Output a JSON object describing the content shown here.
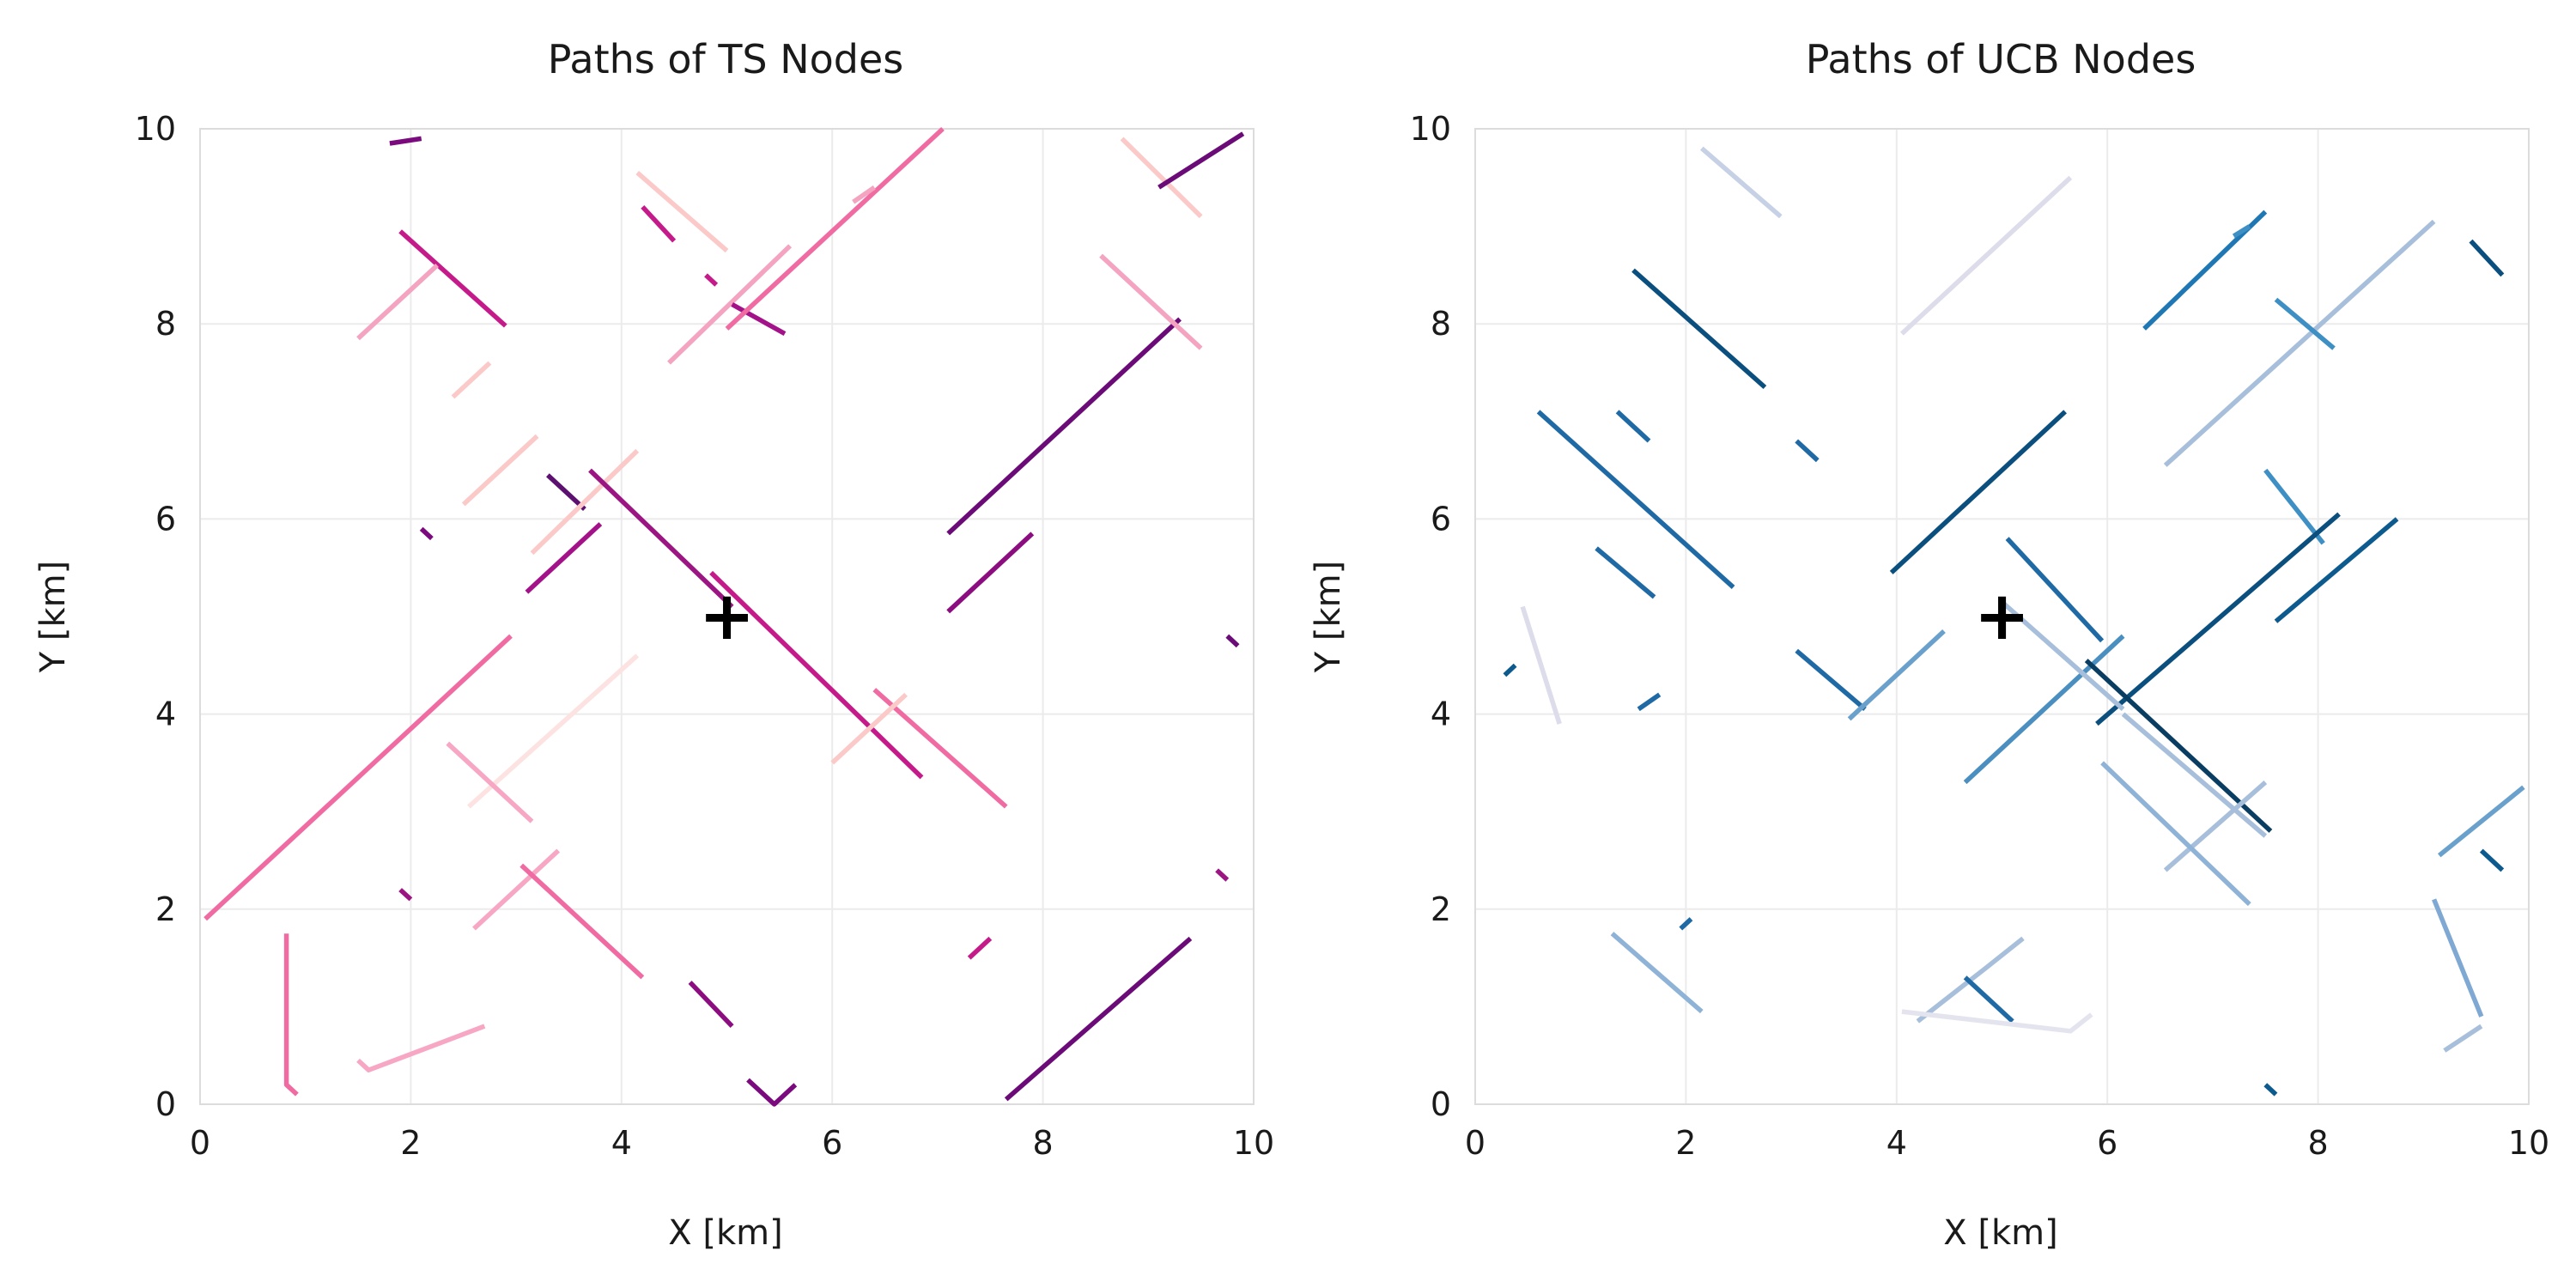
{
  "chart_data": [
    {
      "type": "line",
      "title": "Paths of TS Nodes",
      "xlabel": "X [km]",
      "ylabel": "Y [km]",
      "xlim": [
        0,
        10
      ],
      "ylim": [
        0,
        10
      ],
      "xticks": [
        "0",
        "2",
        "4",
        "6",
        "8",
        "10"
      ],
      "yticks": [
        "0",
        "2",
        "4",
        "6",
        "8",
        "10"
      ],
      "grid": true,
      "marker": {
        "label": "+",
        "x": 5,
        "y": 5
      },
      "series": [
        {
          "color": "#f06ba2",
          "x": [
            0.05,
            2.95
          ],
          "y": [
            1.9,
            4.8
          ]
        },
        {
          "color": "#f06ba2",
          "x": [
            0.82,
            0.82,
            0.92
          ],
          "y": [
            1.75,
            0.2,
            0.1
          ]
        },
        {
          "color": "#f7a6c4",
          "x": [
            1.5,
            1.6,
            2.7
          ],
          "y": [
            0.45,
            0.35,
            0.8
          ]
        },
        {
          "color": "#7b0a7e",
          "x": [
            1.8,
            2.1
          ],
          "y": [
            9.85,
            9.9
          ]
        },
        {
          "color": "#c51b8a",
          "x": [
            1.9,
            2.9
          ],
          "y": [
            8.95,
            7.98
          ]
        },
        {
          "color": "#f4a3c0",
          "x": [
            1.5,
            2.25
          ],
          "y": [
            7.85,
            8.6
          ]
        },
        {
          "color": "#fcc9c9",
          "x": [
            2.4,
            2.75
          ],
          "y": [
            7.25,
            7.6
          ]
        },
        {
          "color": "#fcc9c9",
          "x": [
            2.5,
            3.2
          ],
          "y": [
            6.15,
            6.85
          ]
        },
        {
          "color": "#7b0a7e",
          "x": [
            2.1,
            2.2
          ],
          "y": [
            5.9,
            5.8
          ]
        },
        {
          "color": "#a4128a",
          "x": [
            3.1,
            3.8
          ],
          "y": [
            5.25,
            5.95
          ]
        },
        {
          "color": "#5c1170",
          "x": [
            3.3,
            3.65
          ],
          "y": [
            6.45,
            6.1
          ]
        },
        {
          "color": "#fcc9c9",
          "x": [
            3.15,
            4.15
          ],
          "y": [
            5.65,
            6.7
          ]
        },
        {
          "color": "#fde2e2",
          "x": [
            2.55,
            4.15
          ],
          "y": [
            3.05,
            4.6
          ]
        },
        {
          "color": "#f7a6c4",
          "x": [
            2.35,
            3.15
          ],
          "y": [
            3.7,
            2.9
          ]
        },
        {
          "color": "#f7a6c4",
          "x": [
            2.6,
            3.4
          ],
          "y": [
            1.8,
            2.6
          ]
        },
        {
          "color": "#f06ba2",
          "x": [
            3.05,
            4.2
          ],
          "y": [
            2.45,
            1.3
          ]
        },
        {
          "color": "#9b1683",
          "x": [
            1.9,
            2.0
          ],
          "y": [
            2.2,
            2.1
          ]
        },
        {
          "color": "#fcc9c9",
          "x": [
            4.15,
            5.0
          ],
          "y": [
            9.55,
            8.75
          ]
        },
        {
          "color": "#c51b8a",
          "x": [
            4.2,
            4.5
          ],
          "y": [
            9.2,
            8.85
          ]
        },
        {
          "color": "#c51b8a",
          "x": [
            4.8,
            4.9
          ],
          "y": [
            8.5,
            8.4
          ]
        },
        {
          "color": "#f4a3c0",
          "x": [
            4.45,
            5.6
          ],
          "y": [
            7.6,
            8.8
          ]
        },
        {
          "color": "#a4128a",
          "x": [
            5.05,
            5.55
          ],
          "y": [
            8.2,
            7.9
          ]
        },
        {
          "color": "#f06ba2",
          "x": [
            5.0,
            7.05
          ],
          "y": [
            7.95,
            10.0
          ]
        },
        {
          "color": "#f4a3c0",
          "x": [
            6.2,
            6.4
          ],
          "y": [
            9.25,
            9.4
          ]
        },
        {
          "color": "#9b1683",
          "x": [
            3.7,
            5.05
          ],
          "y": [
            6.5,
            5.1
          ]
        },
        {
          "color": "#c51b8a",
          "x": [
            4.85,
            6.85
          ],
          "y": [
            5.45,
            3.35
          ]
        },
        {
          "color": "#f06ba2",
          "x": [
            6.4,
            7.65
          ],
          "y": [
            4.25,
            3.05
          ]
        },
        {
          "color": "#fcc9c9",
          "x": [
            6.0,
            6.7
          ],
          "y": [
            3.5,
            4.2
          ]
        },
        {
          "color": "#8b0d7f",
          "x": [
            4.65,
            5.05
          ],
          "y": [
            1.25,
            0.8
          ]
        },
        {
          "color": "#7b0a7e",
          "x": [
            5.2,
            5.45,
            5.65
          ],
          "y": [
            0.25,
            0.0,
            0.2
          ]
        },
        {
          "color": "#c51b8a",
          "x": [
            7.3,
            7.5
          ],
          "y": [
            1.5,
            1.7
          ]
        },
        {
          "color": "#6b0b78",
          "x": [
            7.1,
            9.3
          ],
          "y": [
            5.85,
            8.05
          ]
        },
        {
          "color": "#8b0d7f",
          "x": [
            7.1,
            7.9
          ],
          "y": [
            5.05,
            5.85
          ]
        },
        {
          "color": "#fcc9c9",
          "x": [
            8.75,
            9.5
          ],
          "y": [
            9.9,
            9.1
          ]
        },
        {
          "color": "#6b0b78",
          "x": [
            9.1,
            9.9
          ],
          "y": [
            9.4,
            9.95
          ]
        },
        {
          "color": "#f4a3c0",
          "x": [
            8.55,
            9.5
          ],
          "y": [
            8.7,
            7.75
          ]
        },
        {
          "color": "#6b0b78",
          "x": [
            9.75,
            9.85
          ],
          "y": [
            4.8,
            4.7
          ]
        },
        {
          "color": "#9b1683",
          "x": [
            9.65,
            9.75
          ],
          "y": [
            2.4,
            2.3
          ]
        },
        {
          "color": "#6b0b78",
          "x": [
            7.65,
            9.4
          ],
          "y": [
            0.05,
            1.7
          ]
        }
      ]
    },
    {
      "type": "line",
      "title": "Paths of UCB Nodes",
      "xlabel": "X [km]",
      "ylabel": "Y [km]",
      "xlim": [
        0,
        10
      ],
      "ylim": [
        0,
        10
      ],
      "xticks": [
        "0",
        "2",
        "4",
        "6",
        "8",
        "10"
      ],
      "yticks": [
        "0",
        "2",
        "4",
        "6",
        "8",
        "10"
      ],
      "grid": true,
      "marker": {
        "label": "+",
        "x": 5,
        "y": 5
      },
      "series": [
        {
          "color": "#c6d1e6",
          "x": [
            2.15,
            2.9
          ],
          "y": [
            9.8,
            9.1
          ]
        },
        {
          "color": "#0a4f7e",
          "x": [
            1.5,
            2.75
          ],
          "y": [
            8.55,
            7.35
          ]
        },
        {
          "color": "#dcdcea",
          "x": [
            4.05,
            5.65
          ],
          "y": [
            7.9,
            9.5
          ]
        },
        {
          "color": "#1f78b4",
          "x": [
            6.35,
            7.5
          ],
          "y": [
            7.95,
            9.15
          ]
        },
        {
          "color": "#3d8fc4",
          "x": [
            7.2,
            7.35
          ],
          "y": [
            8.9,
            9.0
          ]
        },
        {
          "color": "#0a4f7e",
          "x": [
            9.45,
            9.75
          ],
          "y": [
            8.85,
            8.5
          ]
        },
        {
          "color": "#a7bfdb",
          "x": [
            6.55,
            9.1
          ],
          "y": [
            6.55,
            9.05
          ]
        },
        {
          "color": "#3d8fc4",
          "x": [
            7.6,
            8.15
          ],
          "y": [
            8.25,
            7.75
          ]
        },
        {
          "color": "#1f6aa5",
          "x": [
            0.6,
            2.45
          ],
          "y": [
            7.1,
            5.3
          ]
        },
        {
          "color": "#1f6aa5",
          "x": [
            1.35,
            1.65
          ],
          "y": [
            7.1,
            6.8
          ]
        },
        {
          "color": "#1f6aa5",
          "x": [
            3.05,
            3.25
          ],
          "y": [
            6.8,
            6.6
          ]
        },
        {
          "color": "#1f6aa5",
          "x": [
            1.15,
            1.7
          ],
          "y": [
            5.7,
            5.2
          ]
        },
        {
          "color": "#0a4f7e",
          "x": [
            3.95,
            5.6
          ],
          "y": [
            5.45,
            7.1
          ]
        },
        {
          "color": "#1f6aa5",
          "x": [
            5.05,
            5.95
          ],
          "y": [
            5.8,
            4.75
          ]
        },
        {
          "color": "#3d8fc4",
          "x": [
            7.5,
            8.05
          ],
          "y": [
            6.5,
            5.75
          ]
        },
        {
          "color": "#0a4f7e",
          "x": [
            5.9,
            8.2
          ],
          "y": [
            3.9,
            6.05
          ]
        },
        {
          "color": "#0d5a8e",
          "x": [
            7.6,
            8.75
          ],
          "y": [
            4.95,
            6.0
          ]
        },
        {
          "color": "#dcdcea",
          "x": [
            0.45,
            0.8
          ],
          "y": [
            5.1,
            3.9
          ]
        },
        {
          "color": "#0d5a8e",
          "x": [
            0.28,
            0.38
          ],
          "y": [
            4.4,
            4.5
          ]
        },
        {
          "color": "#1f6aa5",
          "x": [
            1.55,
            1.75
          ],
          "y": [
            4.05,
            4.2
          ]
        },
        {
          "color": "#1f6aa5",
          "x": [
            3.05,
            3.7
          ],
          "y": [
            4.65,
            4.05
          ]
        },
        {
          "color": "#6aa1cc",
          "x": [
            3.55,
            4.45
          ],
          "y": [
            3.95,
            4.85
          ]
        },
        {
          "color": "#4a8fc0",
          "x": [
            4.65,
            6.15
          ],
          "y": [
            3.3,
            4.8
          ]
        },
        {
          "color": "#a7bfdb",
          "x": [
            5.0,
            6.15
          ],
          "y": [
            5.15,
            4.05
          ]
        },
        {
          "color": "#0a3d62",
          "x": [
            5.8,
            7.55
          ],
          "y": [
            4.55,
            2.8
          ]
        },
        {
          "color": "#a7bfdb",
          "x": [
            6.15,
            7.5
          ],
          "y": [
            4.0,
            2.75
          ]
        },
        {
          "color": "#a7bfdb",
          "x": [
            6.55,
            7.5
          ],
          "y": [
            2.4,
            3.3
          ]
        },
        {
          "color": "#8fb3d6",
          "x": [
            5.95,
            7.35
          ],
          "y": [
            3.5,
            2.05
          ]
        },
        {
          "color": "#6aa1cc",
          "x": [
            9.15,
            9.95
          ],
          "y": [
            2.55,
            3.25
          ]
        },
        {
          "color": "#0d5a8e",
          "x": [
            9.55,
            9.75
          ],
          "y": [
            2.6,
            2.4
          ]
        },
        {
          "color": "#7fa9d2",
          "x": [
            9.1,
            9.55
          ],
          "y": [
            2.1,
            0.9
          ]
        },
        {
          "color": "#a7bfdb",
          "x": [
            9.2,
            9.55
          ],
          "y": [
            0.55,
            0.8
          ]
        },
        {
          "color": "#8fb3d6",
          "x": [
            1.3,
            2.15
          ],
          "y": [
            1.75,
            0.95
          ]
        },
        {
          "color": "#1f6aa5",
          "x": [
            1.95,
            2.05
          ],
          "y": [
            1.8,
            1.9
          ]
        },
        {
          "color": "#a7bfdb",
          "x": [
            4.2,
            4.85,
            5.2
          ],
          "y": [
            0.85,
            1.4,
            1.7
          ]
        },
        {
          "color": "#1f6aa5",
          "x": [
            4.65,
            5.1
          ],
          "y": [
            1.3,
            0.85
          ]
        },
        {
          "color": "#e4e4ee",
          "x": [
            4.05,
            5.65,
            5.85
          ],
          "y": [
            0.95,
            0.75,
            0.92
          ]
        },
        {
          "color": "#0d5a8e",
          "x": [
            7.5,
            7.6
          ],
          "y": [
            0.2,
            0.1
          ]
        }
      ]
    }
  ]
}
